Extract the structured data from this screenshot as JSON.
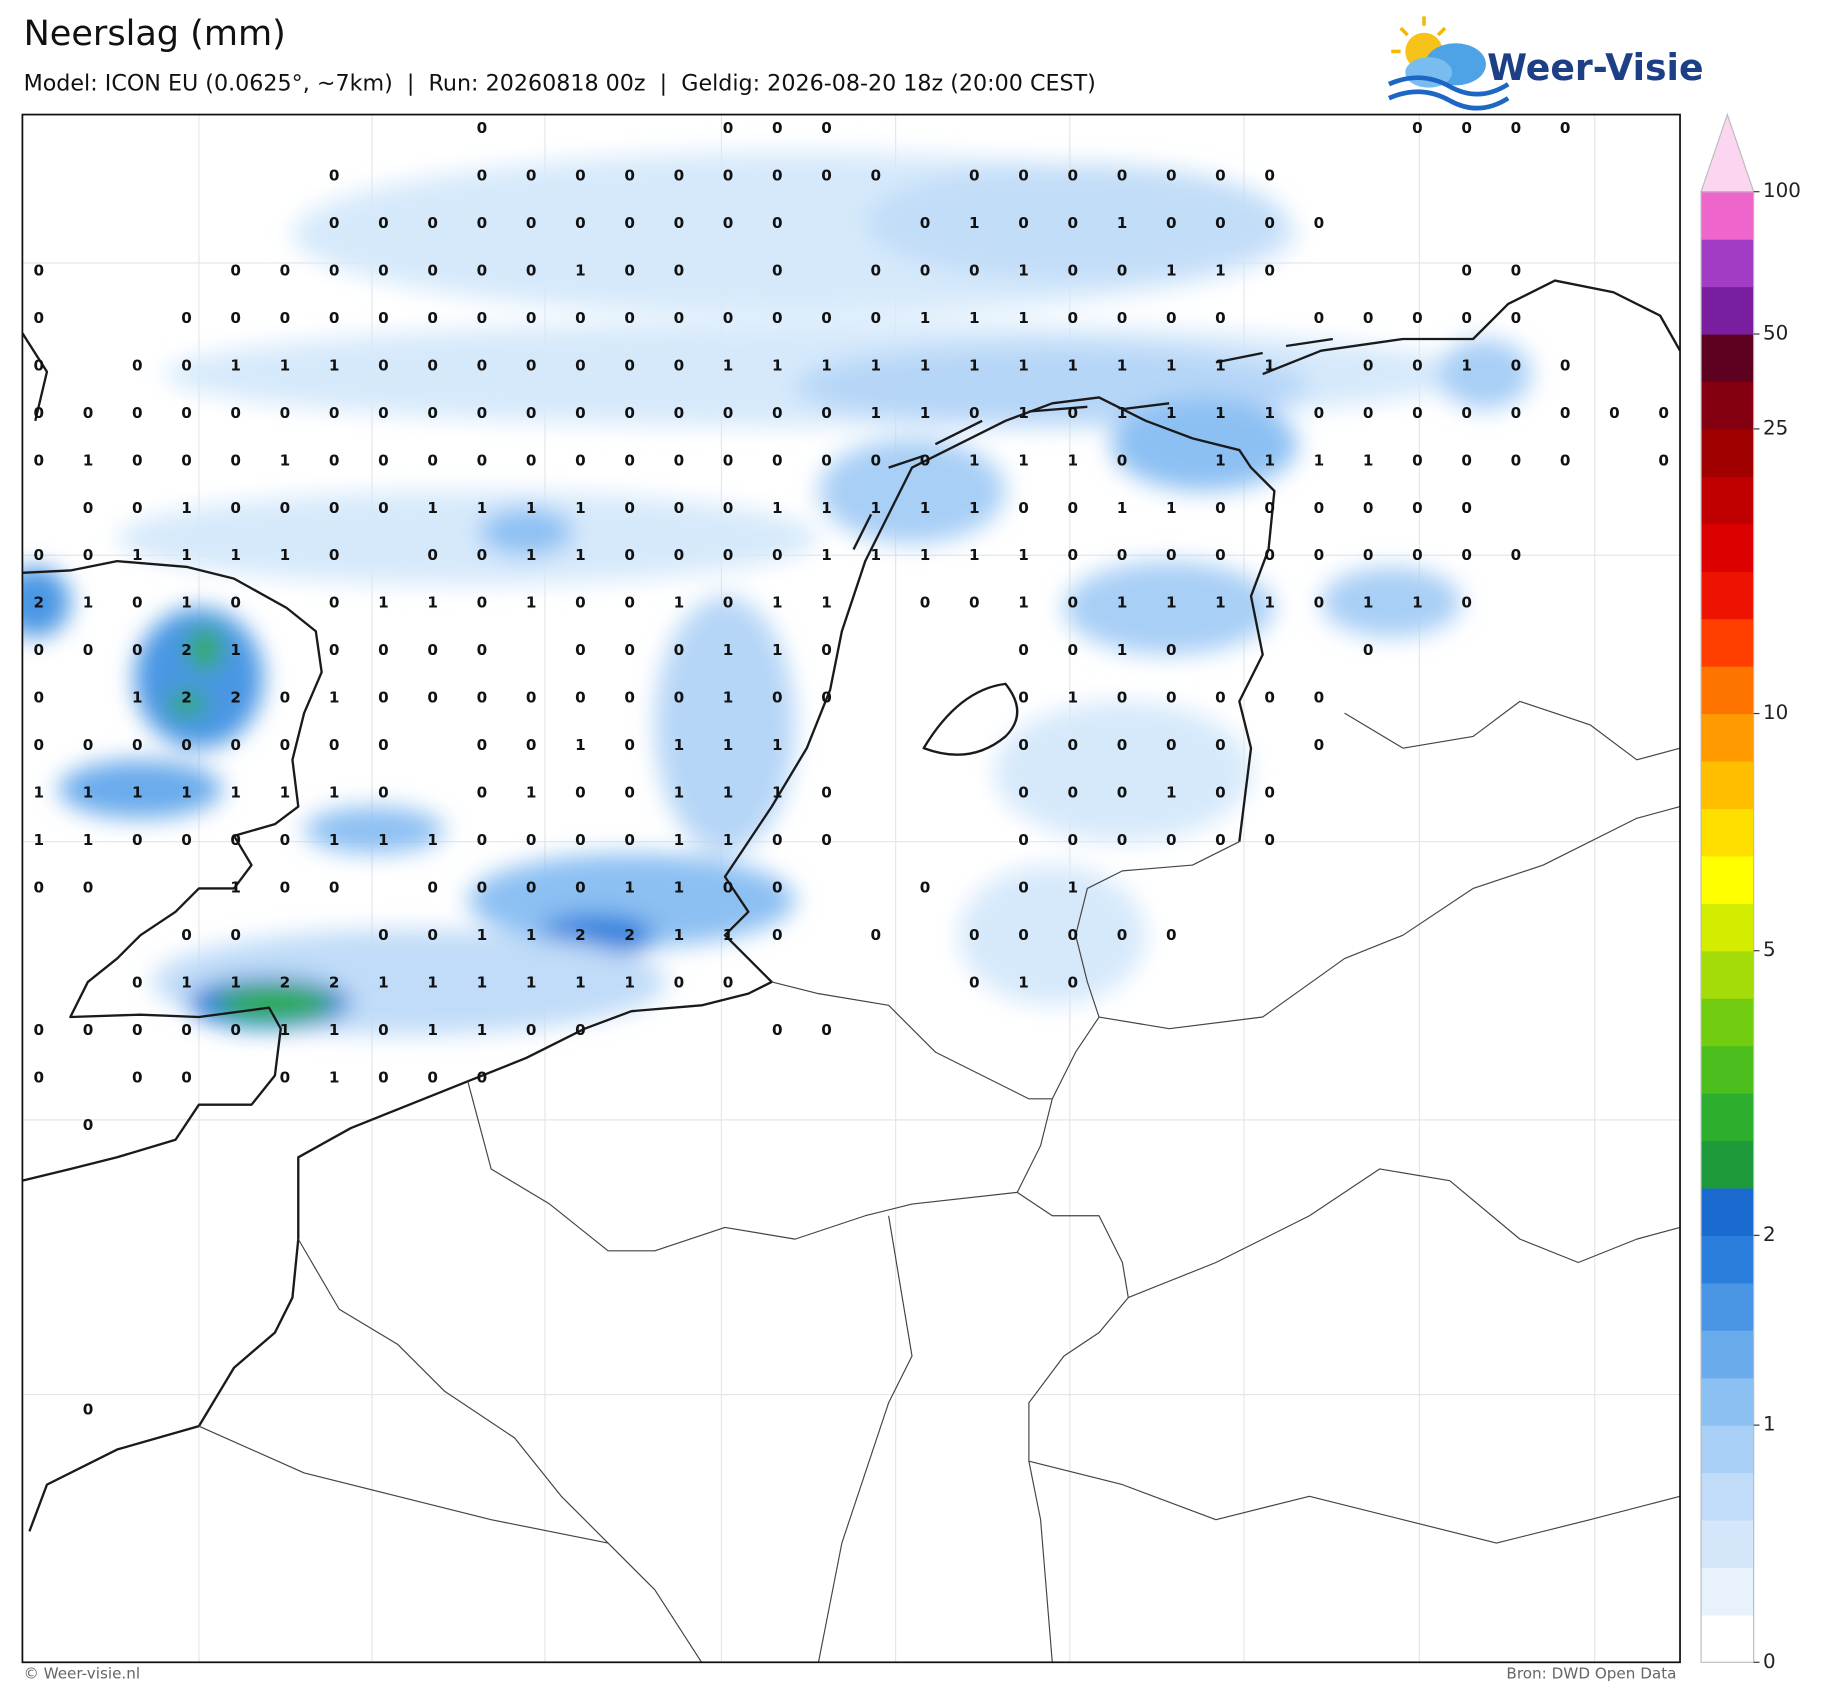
{
  "header": {
    "title": "Neerslag (mm)",
    "subtitle": "Model: ICON EU (0.0625°, ~7km)  |  Run: 20260818 00z  |  Geldig: 2026-08-20 18z (20:00 CEST)"
  },
  "logo": {
    "text": "Weer-Visie"
  },
  "map": {
    "values": [
      "         0    000           0000  ",
      "      0  000000000 0000000        ",
      "      0000000000  010010000       ",
      "0   0000000100 0 000100110   00   ",
      "0  0000000000000001110000 00000   ",
      "0 001110000000111111111111 00100  ",
      "0000000000000000011010111100000000",
      "01000100000000000001110 11110000 0  ",
      " 00100001111000111110011000000    ",
      "0011110 00110000111110000000000   ",
      "21010 01101001011 001011110110    ",
      "00021 0000 000110   0010   0      ",
      "0 122010000000100   0100000       ",
      "00000000 0010111    00000 0       ",
      "11111110 01001110   000100        ",
      "11000011100001100   000000        ",
      "00  100 00001100  0 01            ",
      "   00  001122110 0 00000          ",
      "  0112211111100    010            ",
      "000001101100   00                 ",
      "0 00 01000                        ",
      " 0                                ",
      "                                  ",
      "                                  ",
      "                                  ",
      "                                  ",
      "                                  ",
      " 0                                "
    ]
  },
  "colorbar": {
    "levels": [
      0,
      0.1,
      0.2,
      0.3,
      0.5,
      1,
      1.2,
      1.4,
      1.7,
      2,
      2.5,
      3,
      3.5,
      4,
      4.5,
      5,
      6,
      7,
      8,
      9,
      10,
      12,
      14,
      16,
      18,
      20,
      25,
      35,
      50,
      65,
      80,
      100
    ],
    "colors": [
      "#ffffff",
      "#e8f2fc",
      "#d4e7fa",
      "#c0dcf8",
      "#a8cff6",
      "#8cc0f3",
      "#6aabec",
      "#4a96e4",
      "#2a7fdc",
      "#1a6ad0",
      "#1f9a3a",
      "#2eae2e",
      "#4cbf1e",
      "#72cc10",
      "#a4dc0a",
      "#d4ec00",
      "#ffff00",
      "#ffdf00",
      "#ffbe00",
      "#ff9a00",
      "#ff7400",
      "#ff3e00",
      "#ee1200",
      "#dc0000",
      "#c00000",
      "#a00000",
      "#840010",
      "#5e0020",
      "#7a1ea0",
      "#a23cc4",
      "#ee66cc"
    ],
    "extend_color": "#fcd6f0",
    "ticks": [
      0,
      1,
      2,
      5,
      10,
      25,
      50,
      100
    ]
  },
  "footer": {
    "left": "© Weer-visie.nl",
    "right": "Bron: DWD Open Data"
  }
}
